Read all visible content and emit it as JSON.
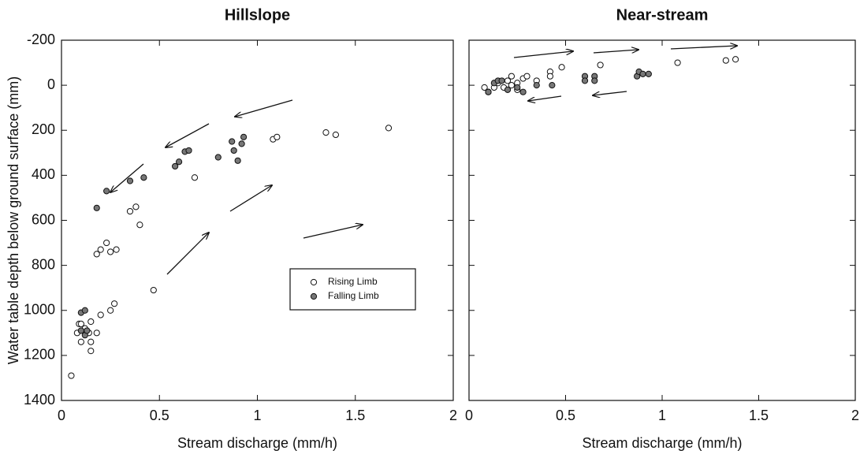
{
  "chart_data": [
    {
      "type": "scatter",
      "title": "Hillslope",
      "x_label": "Stream discharge (mm/h)",
      "y_label": "Water table depth below ground surface (mm)",
      "xlim": [
        0,
        2
      ],
      "xticks": [
        0,
        0.5,
        1,
        1.5,
        2
      ],
      "ylim": [
        -200,
        1400
      ],
      "yticks": [
        -200,
        0,
        200,
        400,
        600,
        800,
        1000,
        1200,
        1400
      ],
      "y_inverted": true,
      "legend": "right",
      "series": [
        {
          "name": "Rising Limb",
          "color": "#ffffff",
          "x": [
            0.05,
            0.08,
            0.09,
            0.1,
            0.12,
            0.14,
            0.15,
            0.15,
            0.18,
            0.2,
            0.25,
            0.27,
            0.1,
            0.15,
            0.18,
            0.2,
            0.23,
            0.25,
            0.28,
            0.35,
            0.38,
            0.4,
            0.47,
            0.68,
            1.08,
            1.1,
            1.35,
            1.4,
            1.67
          ],
          "values": [
            1290,
            1100,
            1060,
            1140,
            1080,
            1100,
            1140,
            1180,
            1100,
            1020,
            1000,
            970,
            1060,
            1050,
            750,
            730,
            700,
            740,
            730,
            560,
            540,
            620,
            910,
            410,
            240,
            230,
            210,
            220,
            190
          ]
        },
        {
          "name": "Falling Limb",
          "color": "#777777",
          "x": [
            0.1,
            0.12,
            0.1,
            0.12,
            0.13,
            0.18,
            0.23,
            0.35,
            0.42,
            0.58,
            0.6,
            0.63,
            0.65,
            0.8,
            0.87,
            0.88,
            0.9,
            0.92,
            0.93
          ],
          "values": [
            1010,
            1000,
            1090,
            1110,
            1090,
            545,
            470,
            425,
            410,
            360,
            340,
            295,
            290,
            320,
            250,
            290,
            335,
            260,
            230
          ]
        }
      ]
    },
    {
      "type": "scatter",
      "title": "Near-stream",
      "x_label": "Stream discharge (mm/h)",
      "xlim": [
        0,
        2
      ],
      "xticks": [
        0,
        0.5,
        1,
        1.5,
        2
      ],
      "ylim": [
        -200,
        1400
      ],
      "yticks": [
        -200,
        0,
        200,
        400,
        600,
        800,
        1000,
        1200,
        1400
      ],
      "y_inverted": true,
      "series": [
        {
          "name": "Rising Limb",
          "color": "#ffffff",
          "x": [
            0.08,
            0.1,
            0.13,
            0.15,
            0.2,
            0.22,
            0.25,
            0.28,
            0.3,
            0.35,
            0.42,
            0.42,
            0.48,
            0.68,
            1.08,
            1.33,
            1.38,
            0.18,
            0.25,
            0.22
          ],
          "values": [
            10,
            30,
            10,
            -10,
            -20,
            -40,
            -10,
            -30,
            -40,
            -20,
            -60,
            -40,
            -80,
            -90,
            -100,
            -110,
            -115,
            10,
            20,
            0
          ]
        },
        {
          "name": "Falling Limb",
          "color": "#777777",
          "x": [
            0.1,
            0.13,
            0.15,
            0.17,
            0.2,
            0.25,
            0.28,
            0.35,
            0.43,
            0.6,
            0.6,
            0.65,
            0.65,
            0.87,
            0.88,
            0.9,
            0.93
          ],
          "values": [
            30,
            -10,
            -20,
            -20,
            20,
            10,
            30,
            0,
            0,
            -40,
            -20,
            -40,
            -20,
            -40,
            -60,
            -50,
            -50
          ]
        }
      ]
    }
  ]
}
